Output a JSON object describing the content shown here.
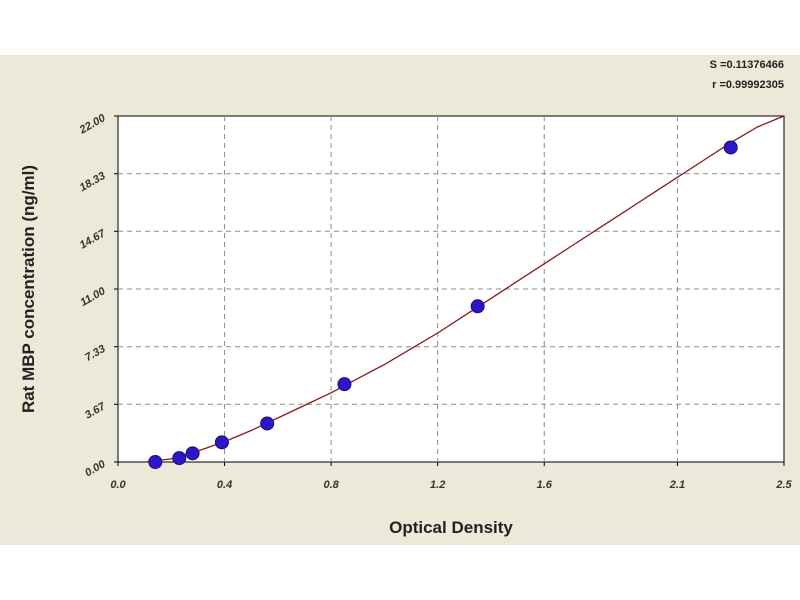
{
  "stats": {
    "s_label": "S =0.11376466",
    "r_label": "r =0.99992305"
  },
  "colors": {
    "panel_bg": "#ece9d8",
    "plot_bg": "#ffffff",
    "grid": "#8c8c8c",
    "curve": "#8b1a1a",
    "point_fill": "#2d16c8",
    "point_stroke": "#1a0a80"
  },
  "chart_data": {
    "type": "scatter",
    "xlabel": "Optical Density",
    "ylabel": "Rat  MBP concentration (ng/ml)",
    "xlim": [
      0.0,
      2.5
    ],
    "ylim": [
      0.0,
      22.0
    ],
    "x_ticks": [
      0.0,
      0.4,
      0.8,
      1.2,
      1.6,
      2.1,
      2.5
    ],
    "x_tick_labels": [
      "0.0",
      "0.4",
      "0.8",
      "1.2",
      "1.6",
      "2.1",
      "2.5"
    ],
    "y_ticks": [
      0.0,
      3.67,
      7.33,
      11.0,
      14.67,
      18.33,
      22.0
    ],
    "y_tick_labels": [
      "0.00",
      "3.67",
      "7.33",
      "11.00",
      "14.67",
      "18.33",
      "22.00"
    ],
    "grid": true,
    "series": [
      {
        "kind": "points",
        "x": [
          0.14,
          0.23,
          0.28,
          0.39,
          0.56,
          0.85,
          1.35,
          2.3
        ],
        "y": [
          0.0,
          0.25,
          0.55,
          1.25,
          2.45,
          4.95,
          9.9,
          20.0
        ]
      },
      {
        "kind": "fit-curve",
        "x": [
          0.1,
          0.2,
          0.3,
          0.4,
          0.5,
          0.6,
          0.7,
          0.8,
          0.9,
          1.0,
          1.1,
          1.2,
          1.3,
          1.4,
          1.5,
          1.6,
          1.7,
          1.8,
          1.9,
          2.0,
          2.1,
          2.2,
          2.3,
          2.4,
          2.5
        ],
        "y": [
          0.0,
          0.2,
          0.7,
          1.3,
          2.0,
          2.8,
          3.6,
          4.4,
          5.3,
          6.2,
          7.2,
          8.2,
          9.3,
          10.4,
          11.5,
          12.6,
          13.7,
          14.8,
          15.9,
          17.0,
          18.1,
          19.2,
          20.3,
          21.3,
          22.0
        ]
      }
    ]
  }
}
